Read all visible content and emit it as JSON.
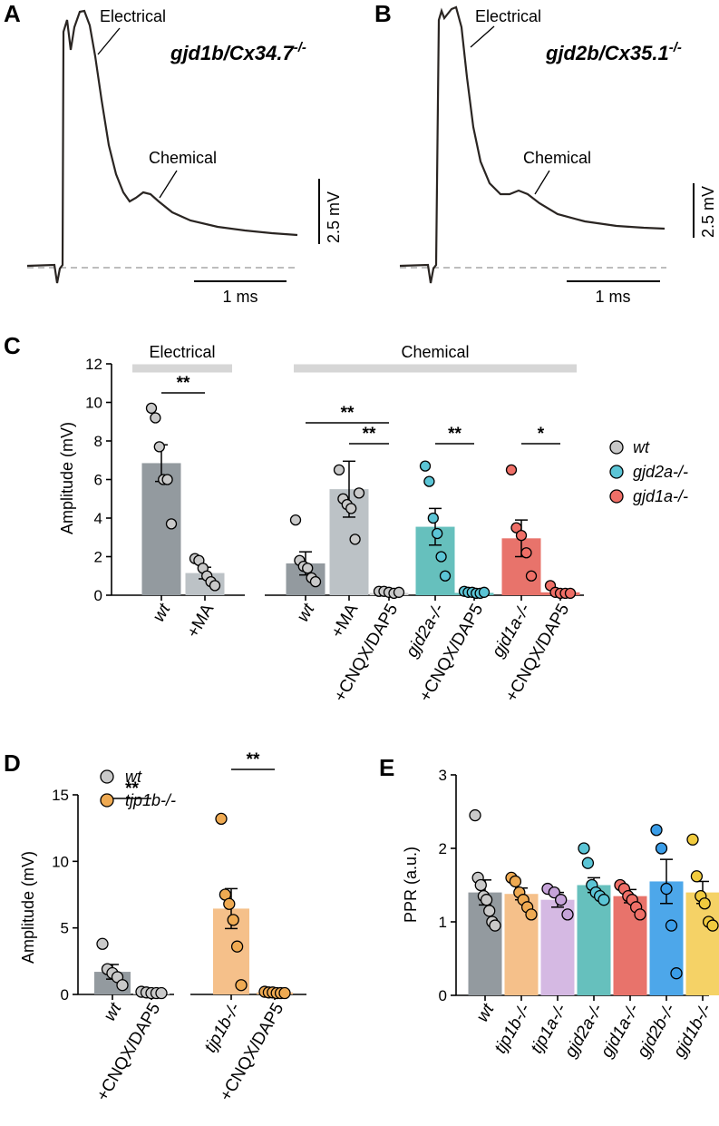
{
  "panel_labels": {
    "A": "A",
    "B": "B",
    "C": "C",
    "D": "D",
    "E": "E"
  },
  "colors": {
    "grey": "#939a9f",
    "grey_light": "#bcc2c6",
    "grey_pt": "#c9c9c9",
    "teal": "#66c0bd",
    "teal_pt": "#5bc5d6",
    "red": "#e8736b",
    "red_pt": "#ef6f67",
    "orange": "#f5c08a",
    "orange_pt": "#efaa52",
    "purple": "#d5b9e3",
    "purple_pt": "#c6a3d9",
    "blue": "#4da7ea",
    "blue_pt": "#3a9de8",
    "yellow": "#f5d266",
    "yellow_pt": "#f1cb3e",
    "bar_gray_light": "#d6d6d6",
    "trace": "#2a2522",
    "baseline": "#bdbdbd"
  },
  "trace_A": {
    "title_main": "gjd1b/Cx34.7",
    "title_sup": "-/-",
    "electrical_label": "Electrical",
    "chemical_label": "Chemical",
    "scale_v": "2.5 mV",
    "scale_t": "1 ms"
  },
  "trace_B": {
    "title_main": "gjd2b/Cx35.1",
    "title_sup": "-/-",
    "electrical_label": "Electrical",
    "chemical_label": "Chemical",
    "scale_v": "2.5 mV",
    "scale_t": "1 ms"
  },
  "chart_data": [
    {
      "id": "C",
      "type": "bar",
      "ylabel": "Amplitude (mV)",
      "ylim": [
        0,
        12
      ],
      "yticks": [
        "0",
        "2",
        "4",
        "6",
        "8",
        "10",
        "12"
      ],
      "group_labels": [
        "Electrical",
        "Chemical"
      ],
      "categories": [
        "wt",
        "+MA",
        "wt",
        "+MA",
        "+CNQX/DAP5",
        "gjd2a-/-",
        "+CNQX/DAP5",
        "gjd1a-/-",
        "+CNQX/DAP5"
      ],
      "category_italic": [
        true,
        false,
        true,
        false,
        false,
        true,
        false,
        true,
        false
      ],
      "values": [
        6.85,
        1.15,
        1.65,
        5.5,
        0.12,
        3.55,
        0.12,
        2.95,
        0.15
      ],
      "errors": [
        0.95,
        0.3,
        0.6,
        1.45,
        0.03,
        0.95,
        0.03,
        0.95,
        0.05
      ],
      "points": [
        [
          9.7,
          9.2,
          7.7,
          6.0,
          6.0,
          3.7
        ],
        [
          1.9,
          1.8,
          1.4,
          1.0,
          0.7,
          0.5
        ],
        [
          3.9,
          1.8,
          1.5,
          1.4,
          0.9,
          0.7
        ],
        [
          6.5,
          5.0,
          4.7,
          4.5,
          2.9,
          5.3
        ],
        [
          0.2,
          0.2,
          0.15,
          0.1,
          0.15
        ],
        [
          6.7,
          5.9,
          4.0,
          3.2,
          2.0,
          1.0
        ],
        [
          0.2,
          0.15,
          0.15,
          0.1,
          0.1,
          0.15
        ],
        [
          6.5,
          3.5,
          3.1,
          2.2,
          1.0
        ],
        [
          0.5,
          0.15,
          0.1,
          0.1,
          0.1
        ]
      ],
      "significance": [
        {
          "label": "**",
          "from": 0,
          "to": 1
        },
        {
          "label": "**",
          "from": 2,
          "to": 4
        },
        {
          "label": "**",
          "from": 3,
          "to": 4
        },
        {
          "label": "**",
          "from": 5,
          "to": 6
        },
        {
          "label": "*",
          "from": 7,
          "to": 8
        }
      ],
      "legend": [
        "wt",
        "gjd2a-/-",
        "gjd1a-/-"
      ]
    },
    {
      "id": "D",
      "type": "bar",
      "ylabel": "Amplitude (mV)",
      "ylim": [
        0,
        15
      ],
      "yticks": [
        "0",
        "5",
        "10",
        "15"
      ],
      "categories": [
        "wt",
        "+CNQX/DAP5",
        "tjp1b-/-",
        "+CNQX/DAP5"
      ],
      "category_italic": [
        true,
        false,
        true,
        false
      ],
      "values": [
        1.7,
        0.1,
        6.45,
        0.15
      ],
      "errors": [
        0.55,
        0.05,
        1.5,
        0.05
      ],
      "points": [
        [
          3.8,
          1.9,
          1.6,
          1.3,
          0.7
        ],
        [
          0.2,
          0.15,
          0.1,
          0.1,
          0.1
        ],
        [
          13.2,
          7.5,
          6.8,
          5.6,
          3.6,
          0.7
        ],
        [
          0.2,
          0.15,
          0.15,
          0.1,
          0.1,
          0.1
        ]
      ],
      "significance": [
        {
          "label": "**",
          "from": 0,
          "to": 1
        },
        {
          "label": "**",
          "from": 2,
          "to": 3
        }
      ],
      "legend": [
        "wt",
        "tjp1b-/-"
      ]
    },
    {
      "id": "E",
      "type": "bar",
      "ylabel": "PPR (a.u.)",
      "ylim": [
        0,
        3
      ],
      "yticks": [
        "0",
        "1",
        "2",
        "3"
      ],
      "categories": [
        "wt",
        "tjp1b-/-",
        "tjp1a-/-",
        "gjd2a-/-",
        "gjd1a-/-",
        "gjd2b-/-",
        "gjd1b-/-"
      ],
      "category_italic": [
        true,
        true,
        true,
        true,
        true,
        true,
        true
      ],
      "values": [
        1.4,
        1.38,
        1.3,
        1.5,
        1.35,
        1.55,
        1.4
      ],
      "errors": [
        0.17,
        0.08,
        0.1,
        0.1,
        0.09,
        0.3,
        0.15
      ],
      "points": [
        [
          2.45,
          1.6,
          1.5,
          1.35,
          1.3,
          1.15,
          1.0,
          0.95
        ],
        [
          1.6,
          1.55,
          1.4,
          1.3,
          1.2,
          1.1
        ],
        [
          1.45,
          1.4,
          1.3,
          1.1
        ],
        [
          2.0,
          1.8,
          1.5,
          1.4,
          1.35,
          1.3
        ],
        [
          1.5,
          1.45,
          1.35,
          1.3,
          1.2,
          1.1
        ],
        [
          2.25,
          2.0,
          1.45,
          0.95,
          0.3
        ],
        [
          2.12,
          1.62,
          1.35,
          1.25,
          1.0,
          0.95
        ]
      ]
    }
  ]
}
